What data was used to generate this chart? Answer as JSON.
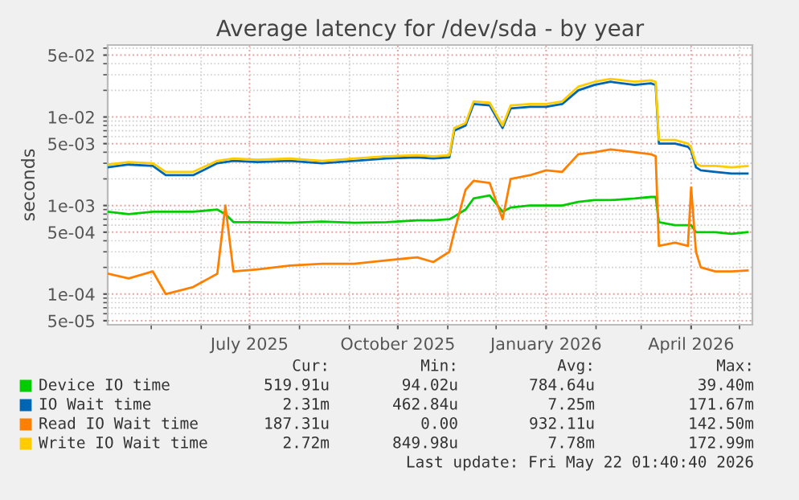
{
  "chart_data": {
    "type": "line",
    "title": "Average latency for /dev/sda - by year",
    "ylabel": "seconds",
    "log": "y",
    "grid": true,
    "legend": "bottom",
    "ylim": [
      4.5e-05,
      0.065
    ],
    "yticks": [
      {
        "value": 5e-05,
        "label": "5e-05"
      },
      {
        "value": 0.0001,
        "label": "1e-04"
      },
      {
        "value": 0.0005,
        "label": "5e-04"
      },
      {
        "value": 0.001,
        "label": "1e-03"
      },
      {
        "value": 0.005,
        "label": "5e-03"
      },
      {
        "value": 0.01,
        "label": "1e-02"
      },
      {
        "value": 0.05,
        "label": "5e-02"
      }
    ],
    "xlim": [
      "2025-04-04",
      "2026-05-09"
    ],
    "xticks": [
      {
        "value": "2025-07-01",
        "label": "July 2025"
      },
      {
        "value": "2025-10-01",
        "label": "October 2025"
      },
      {
        "value": "2026-01-01",
        "label": "January 2026"
      },
      {
        "value": "2026-04-01",
        "label": "April 2026"
      }
    ],
    "x": [
      "2025-04-04",
      "2025-04-17",
      "2025-05-02",
      "2025-05-10",
      "2025-05-27",
      "2025-06-11",
      "2025-06-16",
      "2025-06-21",
      "2025-07-06",
      "2025-07-26",
      "2025-08-15",
      "2025-09-04",
      "2025-09-24",
      "2025-10-13",
      "2025-10-23",
      "2025-11-02",
      "2025-11-05",
      "2025-11-12",
      "2025-11-17",
      "2025-11-27",
      "2025-12-05",
      "2025-12-10",
      "2025-12-22",
      "2026-01-01",
      "2026-01-11",
      "2026-01-21",
      "2026-01-31",
      "2026-02-10",
      "2026-02-25",
      "2026-03-07",
      "2026-03-10",
      "2026-03-12",
      "2026-03-22",
      "2026-03-30",
      "2026-04-01",
      "2026-04-04",
      "2026-04-07",
      "2026-04-16",
      "2026-04-26",
      "2026-05-06"
    ],
    "series": [
      {
        "name": "Device IO time",
        "color": "#00cc00",
        "values": [
          0.00085,
          0.0008,
          0.00085,
          0.00085,
          0.00085,
          0.0009,
          0.0008,
          0.00065,
          0.00065,
          0.00064,
          0.00066,
          0.00064,
          0.00065,
          0.00068,
          0.00068,
          0.0007,
          0.00075,
          0.0009,
          0.0012,
          0.0013,
          0.00085,
          0.00095,
          0.001,
          0.001,
          0.001,
          0.0011,
          0.00115,
          0.00115,
          0.0012,
          0.00125,
          0.00125,
          0.00065,
          0.0006,
          0.0006,
          0.0006,
          0.0005,
          0.0005,
          0.0005,
          0.00048,
          0.0005
        ]
      },
      {
        "name": "IO Wait time",
        "color": "#0066b3",
        "values": [
          0.0027,
          0.0029,
          0.0028,
          0.0022,
          0.0022,
          0.003,
          0.0031,
          0.0032,
          0.0031,
          0.0032,
          0.003,
          0.0032,
          0.0034,
          0.0035,
          0.0034,
          0.0035,
          0.007,
          0.008,
          0.014,
          0.0135,
          0.0075,
          0.0125,
          0.013,
          0.013,
          0.014,
          0.02,
          0.023,
          0.025,
          0.023,
          0.024,
          0.023,
          0.005,
          0.005,
          0.0046,
          0.0042,
          0.0027,
          0.0025,
          0.0024,
          0.0023,
          0.0023
        ]
      },
      {
        "name": "Read IO Wait time",
        "color": "#ff8000",
        "values": [
          0.00017,
          0.00015,
          0.00018,
          0.0001,
          0.00012,
          0.00017,
          0.001,
          0.00018,
          0.00019,
          0.00021,
          0.00022,
          0.00022,
          0.00024,
          0.00026,
          0.00023,
          0.0003,
          0.0005,
          0.0015,
          0.0019,
          0.0018,
          0.0007,
          0.002,
          0.0022,
          0.0025,
          0.0024,
          0.0038,
          0.004,
          0.0043,
          0.004,
          0.0038,
          0.0036,
          0.00035,
          0.00038,
          0.00035,
          0.0016,
          0.0003,
          0.0002,
          0.00018,
          0.00018,
          0.000185
        ]
      },
      {
        "name": "Write IO Wait time",
        "color": "#ffcc00",
        "values": [
          0.0029,
          0.0031,
          0.003,
          0.0024,
          0.0024,
          0.0032,
          0.0033,
          0.0034,
          0.0033,
          0.0034,
          0.0032,
          0.0034,
          0.0036,
          0.0037,
          0.0036,
          0.0037,
          0.0075,
          0.0085,
          0.015,
          0.0145,
          0.008,
          0.0135,
          0.014,
          0.014,
          0.015,
          0.022,
          0.025,
          0.027,
          0.025,
          0.026,
          0.025,
          0.0055,
          0.0055,
          0.005,
          0.0045,
          0.003,
          0.0028,
          0.0028,
          0.0027,
          0.0028
        ]
      }
    ],
    "annotations": [
      "Cur:",
      "Min:",
      "Avg:",
      "Max:",
      "519.91u",
      "94.02u",
      "784.64u",
      "39.40m",
      "2.31m",
      "462.84u",
      "7.25m",
      "171.67m",
      "187.31u",
      "0.00",
      "932.11u",
      "142.50m",
      "2.72m",
      "849.98u",
      "7.78m",
      "172.99m",
      "Last update: Fri May 22 01:40:40 2026"
    ]
  }
}
